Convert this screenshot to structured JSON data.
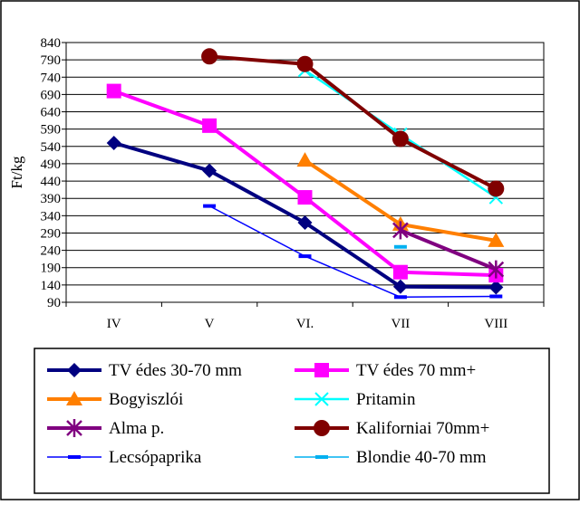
{
  "chart_data": {
    "type": "line",
    "title": "",
    "xlabel": "",
    "ylabel": "Ft/kg",
    "categories": [
      "IV",
      "V",
      "VI.",
      "VII",
      "VIII"
    ],
    "ylim": [
      90,
      840
    ],
    "yticks": [
      90,
      140,
      190,
      240,
      290,
      340,
      390,
      440,
      490,
      540,
      590,
      640,
      690,
      740,
      790,
      840
    ],
    "grid": true,
    "legend_position": "bottom",
    "series": [
      {
        "name": "TV édes 30-70 mm",
        "color": "#000080",
        "marker": "diamond",
        "values": [
          550,
          470,
          320,
          135,
          133
        ]
      },
      {
        "name": "TV édes 70 mm+",
        "color": "#ff00ff",
        "marker": "square",
        "values": [
          700,
          600,
          393,
          177,
          168
        ]
      },
      {
        "name": "Bogyiszlói",
        "color": "#ff7f00",
        "marker": "triangle",
        "values": [
          null,
          null,
          500,
          315,
          268
        ]
      },
      {
        "name": "Pritamin",
        "color": "#00ffff",
        "marker": "x",
        "values": [
          null,
          null,
          760,
          575,
          393
        ]
      },
      {
        "name": "Alma p.",
        "color": "#800080",
        "marker": "asterisk",
        "values": [
          null,
          null,
          null,
          298,
          185
        ]
      },
      {
        "name": "Kaliforniai 70mm+",
        "color": "#800000",
        "marker": "circle",
        "values": [
          null,
          800,
          778,
          562,
          418
        ]
      },
      {
        "name": "Lecsópaprika",
        "color": "#0000ff",
        "marker": "dash",
        "values": [
          null,
          368,
          223,
          105,
          107
        ]
      },
      {
        "name": "Blondie 40-70 mm",
        "color": "#00b0f0",
        "marker": "dash",
        "values": [
          null,
          null,
          null,
          250,
          null
        ]
      }
    ]
  }
}
